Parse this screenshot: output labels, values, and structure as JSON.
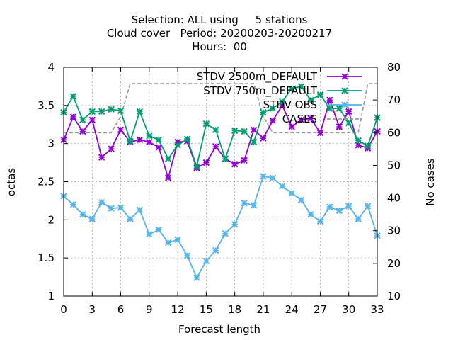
{
  "chart_data": {
    "type": "line",
    "title_lines": [
      "Selection: ALL using     5 stations",
      "Cloud cover   Period: 20200203-20200217",
      "Hours:  00"
    ],
    "xlabel": "Forecast length",
    "ylabel": "octas",
    "y2label": "No cases",
    "xlim": [
      0,
      33
    ],
    "ylim": [
      1,
      4
    ],
    "y2lim": [
      10,
      80
    ],
    "xticks": [
      0,
      3,
      6,
      9,
      12,
      15,
      18,
      21,
      24,
      27,
      30,
      33
    ],
    "yticks": [
      1,
      1.5,
      2,
      2.5,
      3,
      3.5,
      4
    ],
    "y2ticks": [
      10,
      20,
      30,
      40,
      50,
      60,
      70,
      80
    ],
    "grid": true,
    "legend_position": "top-right",
    "x": [
      0,
      1,
      2,
      3,
      4,
      5,
      6,
      7,
      8,
      9,
      10,
      11,
      12,
      13,
      14,
      15,
      16,
      17,
      18,
      19,
      20,
      21,
      22,
      23,
      24,
      25,
      26,
      27,
      28,
      29,
      30,
      31,
      32,
      33
    ],
    "series": [
      {
        "name": "STDV 2500m_DEFAULT",
        "legend_label": "STDV 2500m_DEFAULT",
        "color": "#9400d3",
        "marker": "x",
        "axis": "y1",
        "values": [
          3.05,
          3.35,
          3.16,
          3.31,
          2.82,
          2.93,
          3.18,
          3.02,
          3.05,
          3.02,
          2.95,
          2.55,
          3.02,
          3.03,
          2.68,
          2.75,
          2.96,
          2.8,
          2.73,
          2.78,
          3.18,
          3.07,
          3.3,
          3.5,
          3.22,
          3.31,
          3.33,
          3.14,
          3.57,
          3.22,
          3.42,
          2.98,
          2.94,
          3.16
        ]
      },
      {
        "name": "STDV 750m_DEFAULT",
        "legend_label": "STDV 750m_DEFAULT",
        "color": "#009e73",
        "marker": "x",
        "axis": "y1",
        "values": [
          3.41,
          3.62,
          3.31,
          3.42,
          3.42,
          3.45,
          3.43,
          3.03,
          3.42,
          3.1,
          3.05,
          2.8,
          2.98,
          3.06,
          2.7,
          3.26,
          3.18,
          2.8,
          3.17,
          3.16,
          3.02,
          3.41,
          3.46,
          3.55,
          3.72,
          3.75,
          3.57,
          3.64,
          3.46,
          3.46,
          3.27,
          3.04,
          2.97,
          3.34
        ]
      },
      {
        "name": "STDV OBS",
        "legend_label": "STDV OBS",
        "color": "#56b4e9",
        "marker": "x",
        "axis": "y1",
        "values": [
          2.31,
          2.2,
          2.07,
          2.01,
          2.23,
          2.15,
          2.16,
          2.01,
          2.13,
          1.81,
          1.87,
          1.7,
          1.74,
          1.53,
          1.24,
          1.46,
          1.6,
          1.82,
          1.94,
          2.22,
          2.19,
          2.57,
          2.55,
          2.44,
          2.35,
          2.26,
          2.07,
          1.98,
          2.17,
          2.12,
          2.18,
          2.01,
          2.18,
          1.79
        ]
      },
      {
        "name": "CASES",
        "legend_label": "CASES",
        "color": "#999999",
        "dash": true,
        "axis": "y2",
        "values": [
          60,
          60,
          60,
          60,
          60,
          60,
          65,
          75,
          75,
          75,
          75,
          75,
          75,
          75,
          75,
          75,
          75,
          75,
          75,
          75,
          75,
          65,
          60,
          60,
          60,
          60,
          60,
          60,
          60,
          60,
          60,
          60,
          75,
          75
        ]
      }
    ]
  }
}
